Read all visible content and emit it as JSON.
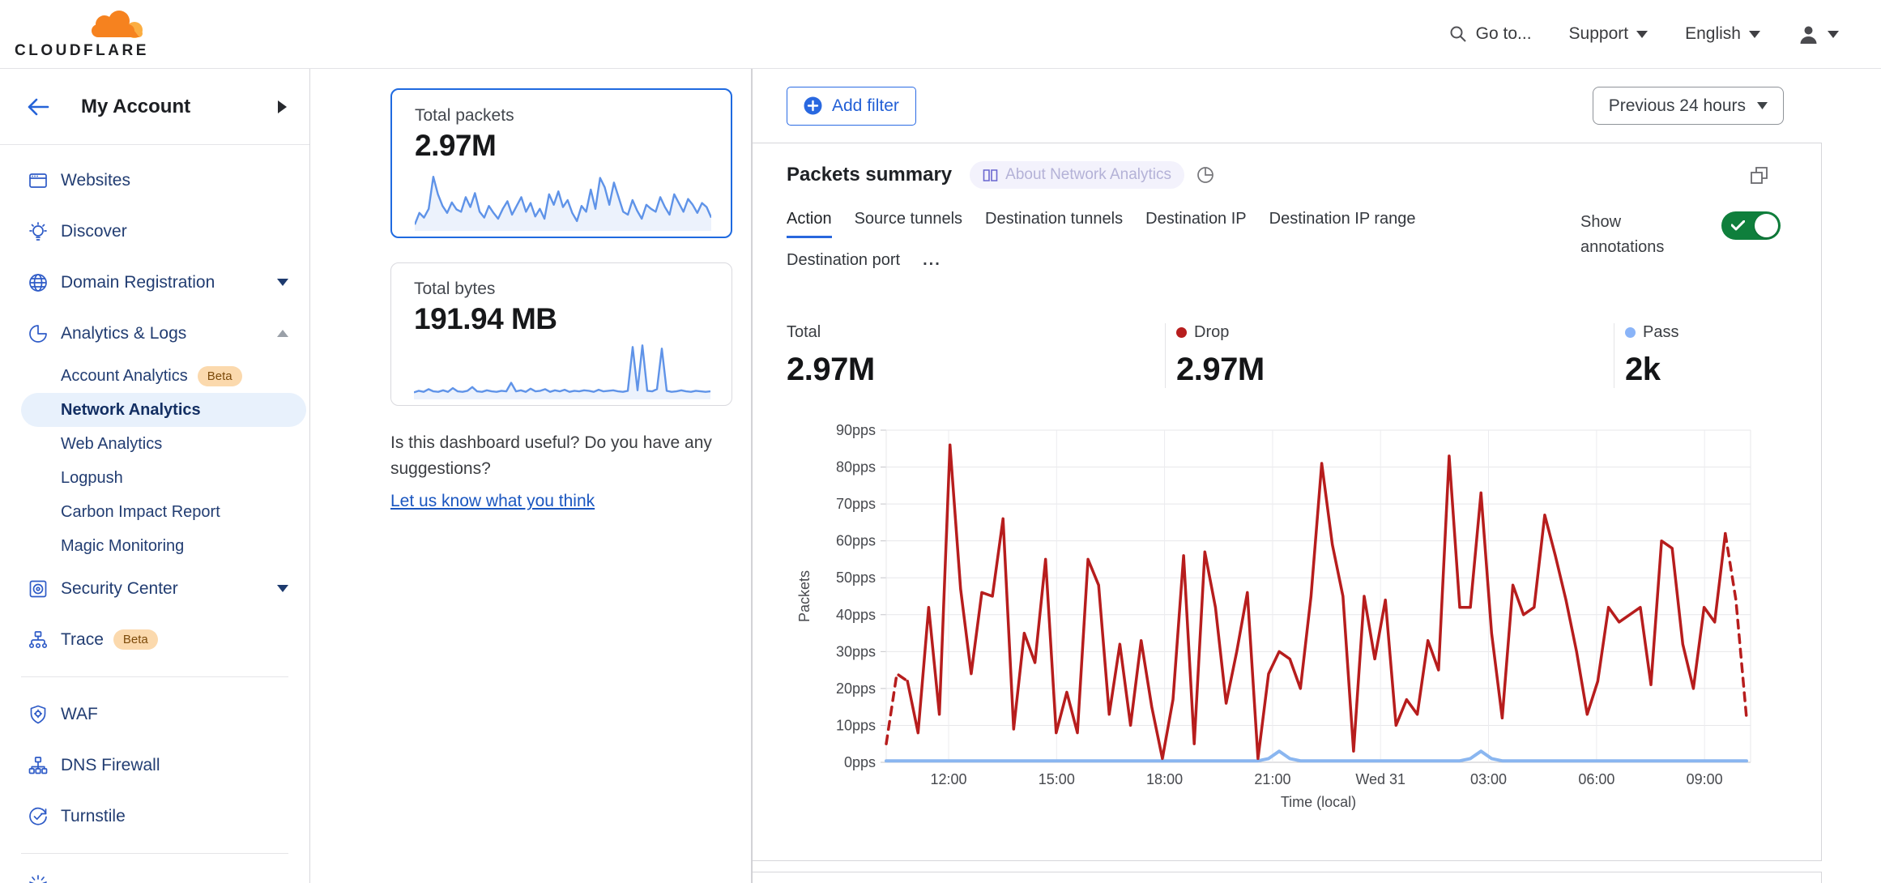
{
  "header": {
    "logo_text": "CLOUDFLARE",
    "goto": "Go to...",
    "support": "Support",
    "language": "English"
  },
  "sidebar": {
    "account": "My Account",
    "items": [
      {
        "type": "item",
        "name": "websites",
        "icon": "window-icon",
        "label": "Websites"
      },
      {
        "type": "item",
        "name": "discover",
        "icon": "bulb-icon",
        "label": "Discover"
      },
      {
        "type": "item",
        "name": "domain-registration",
        "icon": "globe-icon",
        "label": "Domain Registration",
        "caret": "down"
      },
      {
        "type": "item",
        "name": "analytics-logs",
        "icon": "pie-icon",
        "label": "Analytics & Logs",
        "caret": "up"
      },
      {
        "type": "sub",
        "name": "account-analytics",
        "label": "Account Analytics",
        "badge": "Beta"
      },
      {
        "type": "sub",
        "name": "network-analytics",
        "label": "Network Analytics",
        "active": true
      },
      {
        "type": "sub",
        "name": "web-analytics",
        "label": "Web Analytics"
      },
      {
        "type": "sub",
        "name": "logpush",
        "label": "Logpush"
      },
      {
        "type": "sub",
        "name": "carbon-impact-report",
        "label": "Carbon Impact Report"
      },
      {
        "type": "sub",
        "name": "magic-monitoring",
        "label": "Magic Monitoring"
      },
      {
        "type": "item",
        "name": "security-center",
        "icon": "vault-icon",
        "label": "Security Center",
        "caret": "down"
      },
      {
        "type": "item",
        "name": "trace",
        "icon": "trace-icon",
        "label": "Trace",
        "badge": "Beta"
      },
      {
        "type": "divider"
      },
      {
        "type": "item",
        "name": "waf",
        "icon": "shield-gear-icon",
        "label": "WAF"
      },
      {
        "type": "item",
        "name": "dns-firewall",
        "icon": "hierarchy-icon",
        "label": "DNS Firewall"
      },
      {
        "type": "item",
        "name": "turnstile",
        "icon": "turnstile-icon",
        "label": "Turnstile"
      },
      {
        "type": "divider"
      },
      {
        "type": "partial",
        "name": "partial-item",
        "icon": "starburst-icon",
        "label": ""
      }
    ]
  },
  "summary_cards": [
    {
      "label": "Total packets",
      "value": "2.97M",
      "trend": [
        8,
        28,
        20,
        35,
        90,
        60,
        40,
        28,
        46,
        34,
        30,
        55,
        38,
        62,
        30,
        20,
        40,
        28,
        18,
        35,
        48,
        25,
        40,
        55,
        30,
        45,
        22,
        35,
        18,
        60,
        42,
        65,
        38,
        50,
        28,
        14,
        40,
        30,
        68,
        35,
        88,
        72,
        42,
        80,
        55,
        30,
        25,
        50,
        32,
        18,
        42,
        35,
        30,
        55,
        38,
        25,
        60,
        45,
        30,
        52,
        42,
        28,
        45,
        38,
        20
      ]
    },
    {
      "label": "Total bytes",
      "value": "191.94 MB",
      "trend": [
        10,
        13,
        11,
        16,
        12,
        11,
        14,
        11,
        18,
        12,
        11,
        13,
        20,
        12,
        11,
        14,
        12,
        11,
        13,
        12,
        28,
        12,
        14,
        11,
        17,
        12,
        13,
        16,
        11,
        14,
        12,
        15,
        11,
        13,
        12,
        14,
        13,
        11,
        15,
        12,
        13,
        14,
        12,
        11,
        13,
        95,
        14,
        98,
        13,
        12,
        16,
        92,
        13,
        11,
        12,
        14,
        12,
        11,
        13,
        12,
        11,
        12
      ]
    }
  ],
  "feedback": {
    "text": "Is this dashboard useful? Do you have any suggestions?",
    "link": "Let us know what you think"
  },
  "toolbar": {
    "add_filter": "Add filter",
    "time_range": "Previous 24 hours"
  },
  "panel": {
    "title": "Packets summary",
    "about_badge": "About Network Analytics",
    "tabs": [
      "Action",
      "Source tunnels",
      "Destination tunnels",
      "Destination IP",
      "Destination IP range",
      "Destination port"
    ],
    "active_tab": 0,
    "more_label": "...",
    "show_annotations": "Show annotations",
    "stats": [
      {
        "label": "Total",
        "value": "2.97M",
        "dot": null
      },
      {
        "label": "Drop",
        "value": "2.97M",
        "dot": "#b71d1d"
      },
      {
        "label": "Pass",
        "value": "2k",
        "dot": "#8ab4f8"
      }
    ]
  },
  "chart_data": {
    "type": "line",
    "title": "Packets summary",
    "xlabel": "Time (local)",
    "ylabel": "Packets",
    "ylim": [
      0,
      90
    ],
    "ytick_step": 10,
    "yunit": "pps",
    "grid": true,
    "xticks": [
      {
        "label": "12:00",
        "f": 0.0722
      },
      {
        "label": "15:00",
        "f": 0.1971
      },
      {
        "label": "18:00",
        "f": 0.322
      },
      {
        "label": "21:00",
        "f": 0.447
      },
      {
        "label": "Wed 31",
        "f": 0.5719
      },
      {
        "label": "03:00",
        "f": 0.6968
      },
      {
        "label": "06:00",
        "f": 0.8218
      },
      {
        "label": "09:00",
        "f": 0.9467
      }
    ],
    "series": [
      {
        "name": "Pass",
        "color": "#8ab6f0",
        "width": 4,
        "values": [
          0.4,
          0.4,
          0.4,
          0.4,
          0.4,
          0.4,
          0.4,
          0.4,
          0.4,
          0.4,
          0.4,
          0.4,
          0.4,
          0.4,
          0.4,
          0.4,
          0.4,
          0.4,
          0.4,
          0.4,
          0.4,
          0.4,
          0.4,
          0.4,
          0.4,
          0.4,
          0.4,
          0.4,
          0.4,
          0.4,
          0.4,
          0.4,
          0.4,
          0.4,
          0.4,
          0.4,
          1,
          3,
          1,
          0.4,
          0.4,
          0.4,
          0.4,
          0.4,
          0.4,
          0.4,
          0.4,
          0.4,
          0.4,
          0.4,
          0.4,
          0.4,
          0.4,
          0.4,
          0.4,
          1,
          3,
          1,
          0.4,
          0.4,
          0.4,
          0.4,
          0.4,
          0.4,
          0.4,
          0.4,
          0.4,
          0.4,
          0.4,
          0.4,
          0.4,
          0.4,
          0.4,
          0.4,
          0.4,
          0.4,
          0.4,
          0.4,
          0.4,
          0.4,
          0.4,
          0.4
        ]
      },
      {
        "name": "Drop",
        "color": "#b71d1d",
        "width": 3.5,
        "dashed_head_segments": 2,
        "dashed_tail_segments": 2,
        "values": [
          5,
          24,
          22,
          8,
          42,
          13,
          86,
          47,
          24,
          46,
          45,
          66,
          9,
          35,
          27,
          55,
          8,
          19,
          8,
          55,
          48,
          13,
          32,
          10,
          33,
          15,
          1,
          17,
          56,
          5,
          57,
          42,
          16,
          30,
          46,
          1,
          24,
          30,
          28,
          20,
          45,
          81,
          59,
          45,
          3,
          45,
          28,
          44,
          10,
          17,
          13,
          33,
          25,
          83,
          42,
          42,
          73,
          35,
          12,
          48,
          40,
          42,
          67,
          56,
          44,
          30,
          13,
          22,
          42,
          38,
          40,
          42,
          21,
          60,
          58,
          32,
          20,
          42,
          38,
          62,
          44,
          12
        ]
      }
    ],
    "legend_position": "above-chart (Total / Drop / Pass stat row)"
  },
  "colors": {
    "accent_blue": "#1f6ae0",
    "drop_red": "#b71d1d",
    "pass_blue": "#8ab4f8",
    "toggle_green": "#0f7f3c",
    "beta_badge_bg": "#fbd9ad",
    "brand_orange": "#f6821f",
    "brand_orange_light": "#fbad41",
    "selected_pill_bg": "#e8f1fc"
  }
}
